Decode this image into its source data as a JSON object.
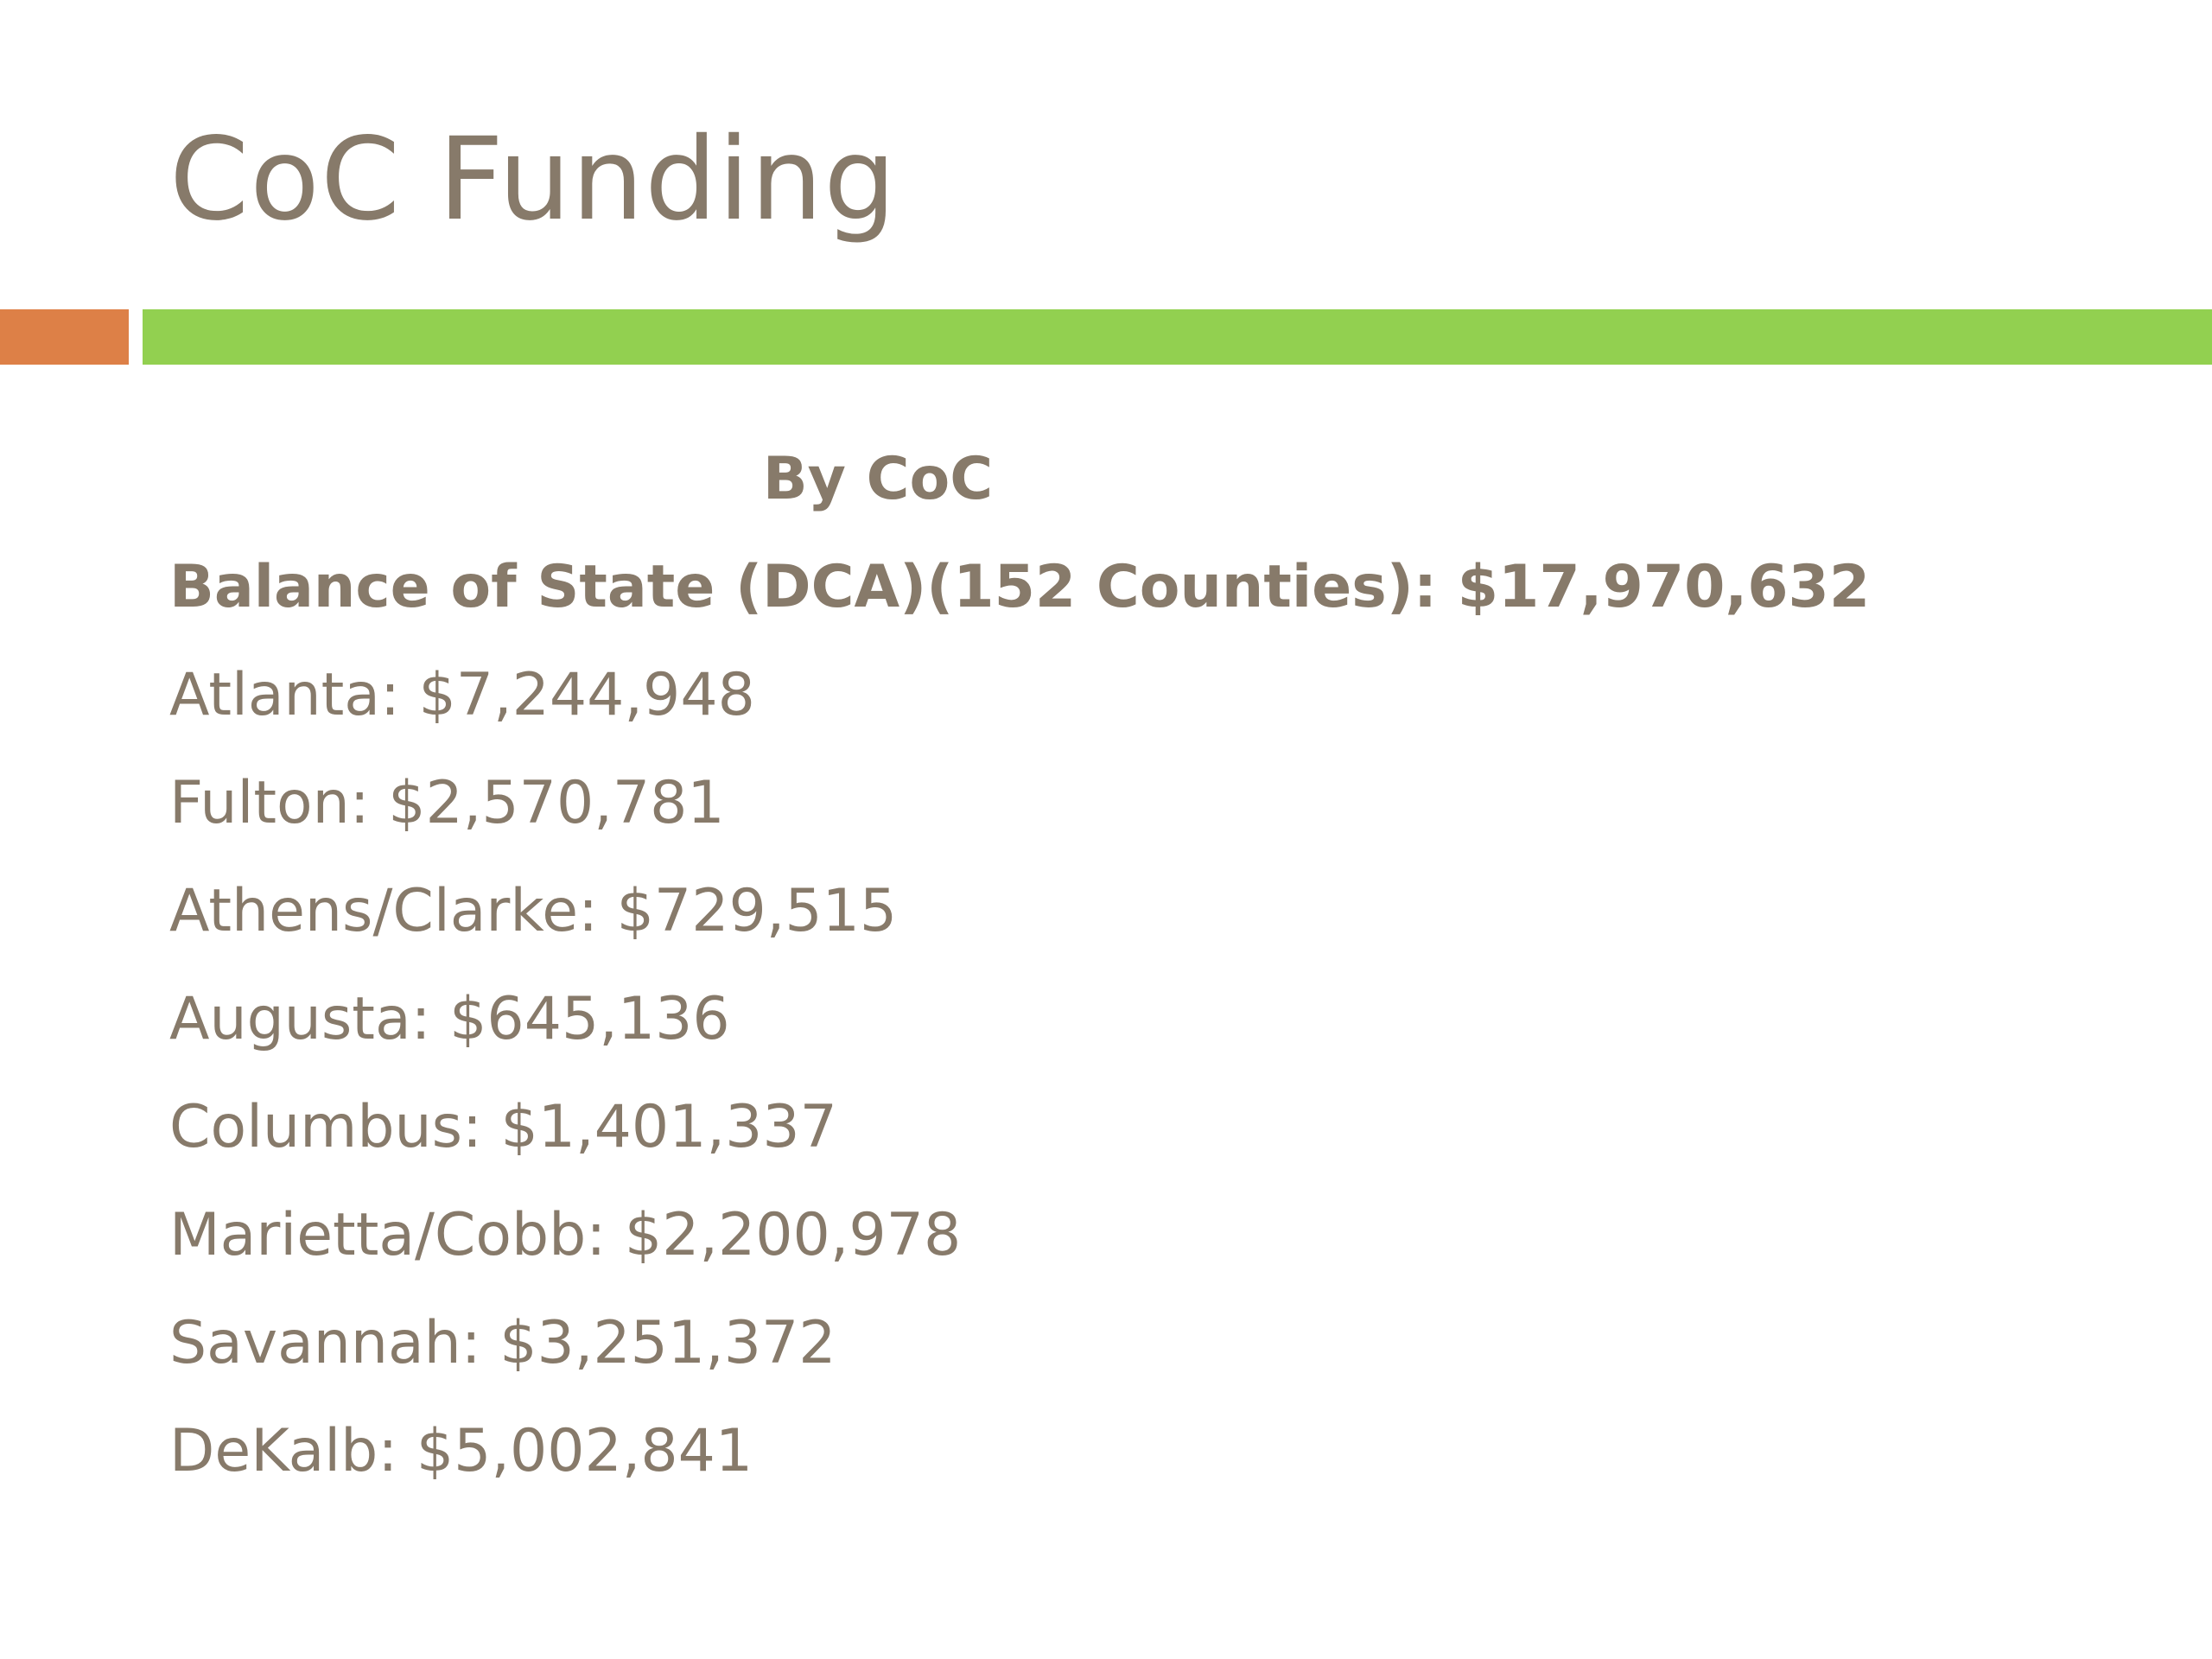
{
  "slide": {
    "title": "CoC Funding",
    "accent_colors": {
      "orange": "#dd8047",
      "green": "#92d050",
      "text": "#877a6a"
    },
    "subheading": "By CoC",
    "lines": [
      {
        "text": "Balance of State (DCA)(152 Counties): $17,970,632",
        "bold": true
      },
      {
        "text": "Atlanta: $7,244,948",
        "bold": false
      },
      {
        "text": "Fulton: $2,570,781",
        "bold": false
      },
      {
        "text": "Athens/Clarke: $729,515",
        "bold": false
      },
      {
        "text": "Augusta: $645,136",
        "bold": false
      },
      {
        "text": "Columbus: $1,401,337",
        "bold": false
      },
      {
        "text": "Marietta/Cobb: $2,200,978",
        "bold": false
      },
      {
        "text": "Savannah: $3,251,372",
        "bold": false
      },
      {
        "text": "DeKalb: $5,002,841",
        "bold": false
      }
    ]
  }
}
